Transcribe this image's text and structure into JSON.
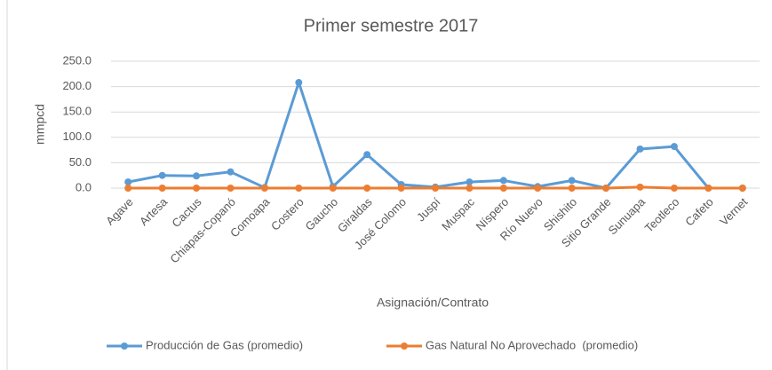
{
  "chart_data": {
    "type": "line",
    "title": "Primer semestre 2017",
    "x_label": "Asignación/Contrato",
    "y_label": "mmpcd",
    "categories": [
      "Agave",
      "Artesa",
      "Cactus",
      "Chiapas-Copanó",
      "Comoapa",
      "Costero",
      "Gaucho",
      "Giraldas",
      "José Colomo",
      "Juspí",
      "Muspac",
      "Níspero",
      "Río Nuevo",
      "Shishito",
      "Sitio Grande",
      "Sunuapa",
      "Teotleco",
      "Cafeto",
      "Vernet"
    ],
    "series": [
      {
        "name": "Producción de Gas (promedio)",
        "color": "#5b9bd5",
        "values": [
          12,
          25,
          24,
          32,
          1,
          208,
          3,
          66,
          7,
          2,
          12,
          15,
          3,
          15,
          0,
          77,
          82,
          0,
          0
        ]
      },
      {
        "name": "Gas Natural No Aprovechado  (promedio)",
        "color": "#ed7d31",
        "values": [
          0,
          0,
          0,
          0,
          0,
          0,
          0,
          0,
          0,
          0,
          0,
          0,
          0,
          0,
          0,
          2,
          0,
          0,
          0
        ]
      }
    ],
    "ylim": [
      0,
      250
    ],
    "yticks": [
      {
        "value": 0,
        "label": "0.0"
      },
      {
        "value": 50,
        "label": "50.0"
      },
      {
        "value": 100,
        "label": "100.0"
      },
      {
        "value": 150,
        "label": "150.0"
      },
      {
        "value": 200,
        "label": "200.0"
      },
      {
        "value": 250,
        "label": "250.0"
      }
    ],
    "grid": true,
    "legend": "bottom"
  }
}
